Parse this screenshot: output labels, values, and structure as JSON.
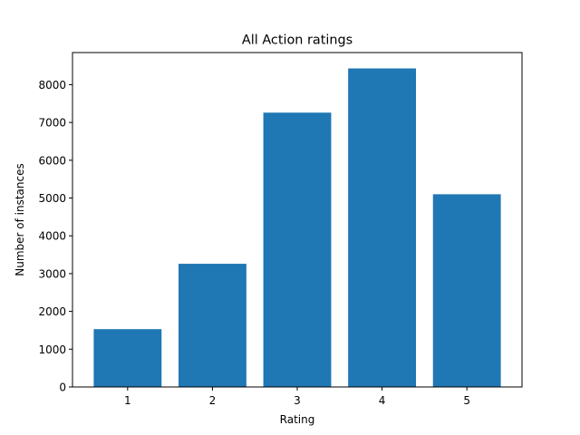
{
  "chart_data": {
    "type": "bar",
    "title": "All Action ratings",
    "xlabel": "Rating",
    "ylabel": "Number of instances",
    "categories": [
      "1",
      "2",
      "3",
      "4",
      "5"
    ],
    "values": [
      1530,
      3260,
      7260,
      8430,
      5100
    ],
    "x_range": [
      0.35,
      5.65
    ],
    "ylim": [
      0,
      8850
    ],
    "yticks": [
      0,
      1000,
      2000,
      3000,
      4000,
      5000,
      6000,
      7000,
      8000
    ],
    "bar_width": 0.8,
    "bar_color": "#1f77b4",
    "grid": false,
    "legend": "none"
  }
}
